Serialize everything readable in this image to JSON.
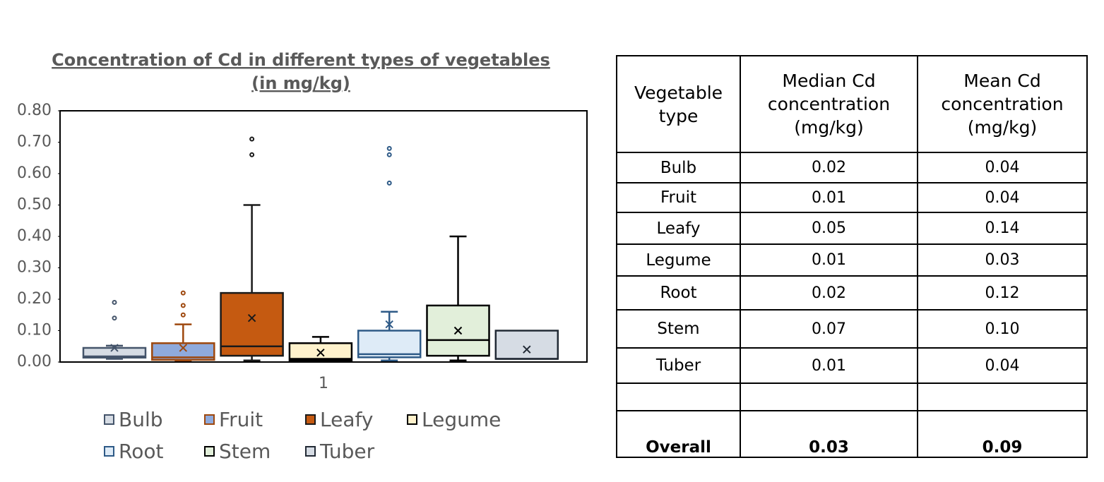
{
  "chart_data": {
    "type": "box",
    "title": [
      "Concentration of Cd in different types of vegetables",
      "(in mg/kg)"
    ],
    "categories": [
      "1"
    ],
    "ylim": [
      0,
      0.8
    ],
    "yticks": [
      {
        "value": 0,
        "label": "0.00"
      },
      {
        "value": 0.1,
        "label": "0.10"
      },
      {
        "value": 0.2,
        "label": "0.20"
      },
      {
        "value": 0.3,
        "label": "0.30"
      },
      {
        "value": 0.4,
        "label": "0.40"
      },
      {
        "value": 0.5,
        "label": "0.50"
      },
      {
        "value": 0.6,
        "label": "0.60"
      },
      {
        "value": 0.7,
        "label": "0.70"
      },
      {
        "value": 0.8,
        "label": "0.80"
      }
    ],
    "series": [
      {
        "name": "Bulb",
        "color": "#d6dce4",
        "stroke": "#44546a",
        "min": 0.01,
        "q1": 0.014,
        "median": 0.018,
        "q3": 0.045,
        "max": 0.052,
        "mean": 0.045,
        "outliers": [
          0.19,
          0.14
        ]
      },
      {
        "name": "Fruit",
        "color": "#8faadc",
        "stroke": "#9e480e",
        "min": 0.005,
        "q1": 0.007,
        "median": 0.015,
        "q3": 0.06,
        "max": 0.12,
        "mean": 0.045,
        "outliers": [
          0.22,
          0.18,
          0.15
        ]
      },
      {
        "name": "Leafy",
        "color": "#c55a11",
        "stroke": "#1a1a1a",
        "min": 0.005,
        "q1": 0.02,
        "median": 0.05,
        "q3": 0.22,
        "max": 0.5,
        "mean": 0.14,
        "outliers": [
          0.71,
          0.66
        ]
      },
      {
        "name": "Legume",
        "color": "#fff2cc",
        "stroke": "#000000",
        "min": 0.005,
        "q1": 0.005,
        "median": 0.01,
        "q3": 0.06,
        "max": 0.08,
        "mean": 0.03,
        "outliers": []
      },
      {
        "name": "Root",
        "color": "#deebf7",
        "stroke": "#2e5a87",
        "min": 0.005,
        "q1": 0.015,
        "median": 0.025,
        "q3": 0.1,
        "max": 0.16,
        "mean": 0.12,
        "outliers": [
          0.68,
          0.66,
          0.57
        ]
      },
      {
        "name": "Stem",
        "color": "#e2efda",
        "stroke": "#000000",
        "min": 0.005,
        "q1": 0.02,
        "median": 0.07,
        "q3": 0.18,
        "max": 0.4,
        "mean": 0.1,
        "outliers": []
      },
      {
        "name": "Tuber",
        "color": "#d6dce4",
        "stroke": "#222a35",
        "q1": 0.01,
        "median": 0.01,
        "q3": 0.1,
        "mean": 0.04,
        "outliers": []
      }
    ]
  },
  "table": {
    "header": [
      "Vegetable type",
      "Median Cd concentration (mg/kg)",
      "Mean Cd concentration (mg/kg)"
    ],
    "rows": [
      [
        "Bulb",
        "0.02",
        "0.04"
      ],
      [
        "Fruit",
        "0.01",
        "0.04"
      ],
      [
        "Leafy",
        "0.05",
        "0.14"
      ],
      [
        "Legume",
        "0.01",
        "0.03"
      ],
      [
        "Root",
        "0.02",
        "0.12"
      ],
      [
        "Stem",
        "0.07",
        "0.10"
      ],
      [
        "Tuber",
        "0.01",
        "0.04"
      ]
    ],
    "overall": [
      "Overall",
      "0.03",
      "0.09"
    ]
  }
}
